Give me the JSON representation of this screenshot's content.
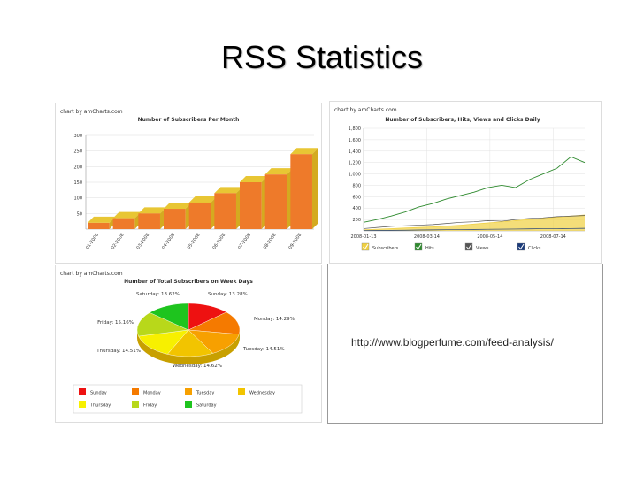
{
  "slide": {
    "title": "RSS Statistics",
    "url": "http://www.blogperfume.com/feed-analysis/"
  },
  "chart_data": [
    {
      "type": "bar",
      "credit": "chart by amCharts.com",
      "title": "Number of Subscribers Per Month",
      "categories": [
        "01-2008",
        "02-2008",
        "03-2008",
        "04-2008",
        "05-2008",
        "06-2008",
        "07-2008",
        "08-2008",
        "09-2008"
      ],
      "values": [
        20,
        35,
        50,
        65,
        85,
        115,
        150,
        175,
        240
      ],
      "ylim": [
        0,
        300
      ],
      "yticks": [
        50,
        100,
        150,
        200,
        250,
        300
      ],
      "colors": {
        "bar": "#ee7a2a",
        "bar_top": "#e8c634",
        "grid": "#dddddd"
      }
    },
    {
      "type": "line",
      "credit": "chart by amCharts.com",
      "title": "Number of Subscribers, Hits, Views and Clicks Daily",
      "ylim": [
        0,
        1800
      ],
      "yticks": [
        "1,800",
        "1,600",
        "1,400",
        "1,200",
        "1,000",
        "800",
        "600",
        "400",
        "200"
      ],
      "ytick_values": [
        1800,
        1600,
        1400,
        1200,
        1000,
        800,
        600,
        400,
        200
      ],
      "xticks": [
        "2008-01-13",
        "2008-03-14",
        "2008-05-14",
        "2008-07-14"
      ],
      "legend": [
        "Subscribers",
        "Hits",
        "Views",
        "Clicks"
      ],
      "series": [
        {
          "name": "Subscribers",
          "color": "#f0d040",
          "values": [
            20,
            30,
            40,
            50,
            60,
            70,
            85,
            100,
            120,
            140,
            160,
            180,
            200,
            220,
            240,
            260,
            280
          ]
        },
        {
          "name": "Hits",
          "color": "#2e8a2e",
          "values": [
            150,
            200,
            260,
            330,
            420,
            480,
            560,
            620,
            680,
            760,
            800,
            760,
            900,
            1000,
            1100,
            1300,
            1200
          ]
        },
        {
          "name": "Views",
          "color": "#555555",
          "values": [
            40,
            60,
            80,
            90,
            100,
            110,
            130,
            150,
            160,
            180,
            170,
            200,
            220,
            230,
            250,
            260,
            270
          ]
        },
        {
          "name": "Clicks",
          "color": "#1a3a7a",
          "values": [
            5,
            8,
            10,
            12,
            15,
            18,
            20,
            22,
            25,
            28,
            30,
            32,
            35,
            38,
            40,
            42,
            45
          ]
        }
      ]
    },
    {
      "type": "pie",
      "credit": "chart by amCharts.com",
      "title": "Number of Total Subscribers on Week Days",
      "slices": [
        {
          "name": "Sunday",
          "value": 13.28,
          "label": "Sunday: 13.28%",
          "color": "#ee1111"
        },
        {
          "name": "Monday",
          "value": 14.29,
          "label": "Monday: 14.29%",
          "color": "#f57a00"
        },
        {
          "name": "Tuesday",
          "value": 14.51,
          "label": "Tuesday: 14.51%",
          "color": "#f7a000"
        },
        {
          "name": "Wednesday",
          "value": 14.62,
          "label": "Wednesday: 14.62%",
          "color": "#f2c400"
        },
        {
          "name": "Thursday",
          "value": 14.51,
          "label": "Thursday: 14.51%",
          "color": "#f7f000"
        },
        {
          "name": "Friday",
          "value": 15.16,
          "label": "Friday: 15.16%",
          "color": "#b8d81a"
        },
        {
          "name": "Saturday",
          "value": 13.62,
          "label": "Saturday: 13.62%",
          "color": "#1ec41e"
        }
      ]
    }
  ]
}
